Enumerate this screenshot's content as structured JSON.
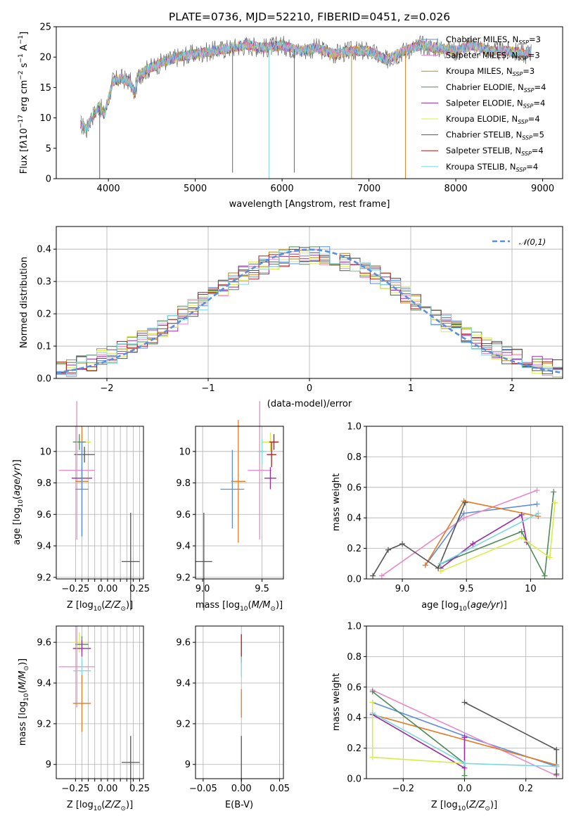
{
  "title": "PLATE=0736, MJD=52210, FIBERID=0451, z=0.026",
  "colors": {
    "Chabrier MILES": "#5b8ee0",
    "Salpeter MILES": "#e98ac6",
    "Kroupa MILES": "#b88a1d",
    "Chabrier ELODIE": "#4f8a57",
    "Salpeter ELODIE": "#9a2aa6",
    "Kroupa ELODIE": "#d8ec4a",
    "Chabrier STELIB": "#555555",
    "Salpeter STELIB": "#b01818",
    "Kroupa STELIB": "#7ad8e2",
    "orange": "#e67a22",
    "normal": "#5b8ee0",
    "grid": "#b0b0b0"
  },
  "chart_data": [
    {
      "id": "spectrum",
      "type": "line",
      "xlabel": "wavelength [Angstrom, rest frame]",
      "ylabel": "Flux [fλ10⁻¹⁷ erg cm⁻² s⁻¹ A⁻¹]",
      "xlim": [
        3400,
        9230
      ],
      "ylim": [
        0,
        25
      ],
      "xticks": [
        4000,
        5000,
        6000,
        7000,
        8000,
        9000
      ],
      "yticks": [
        0,
        5,
        10,
        15,
        20,
        25
      ],
      "grid": false,
      "legend": "top-right",
      "legend_entries": [
        {
          "model": "Chabrier MILES",
          "n": "3"
        },
        {
          "model": "Salpeter MILES",
          "n": "3"
        },
        {
          "model": "Kroupa MILES",
          "n": "3"
        },
        {
          "model": "Chabrier ELODIE",
          "n": "4"
        },
        {
          "model": "Salpeter ELODIE",
          "n": "4"
        },
        {
          "model": "Kroupa ELODIE",
          "n": "4"
        },
        {
          "model": "Chabrier STELIB",
          "n": "5"
        },
        {
          "model": "Salpeter STELIB",
          "n": "4"
        },
        {
          "model": "Kroupa STELIB",
          "n": "4"
        }
      ],
      "continuum": [
        [
          3680,
          9
        ],
        [
          3750,
          8
        ],
        [
          3800,
          10
        ],
        [
          3850,
          11
        ],
        [
          3900,
          12
        ],
        [
          3950,
          10.5
        ],
        [
          4000,
          13
        ],
        [
          4050,
          16
        ],
        [
          4150,
          16.5
        ],
        [
          4250,
          16
        ],
        [
          4300,
          14
        ],
        [
          4350,
          17
        ],
        [
          4450,
          18
        ],
        [
          4600,
          19
        ],
        [
          4800,
          20
        ],
        [
          5000,
          20.5
        ],
        [
          5200,
          21
        ],
        [
          5400,
          21.5
        ],
        [
          5600,
          22
        ],
        [
          5800,
          21.5
        ],
        [
          6000,
          22
        ],
        [
          6200,
          21
        ],
        [
          6400,
          21.5
        ],
        [
          6600,
          20.5
        ],
        [
          6800,
          21
        ],
        [
          7000,
          21
        ],
        [
          7200,
          19.5
        ],
        [
          7400,
          21
        ],
        [
          7600,
          22
        ],
        [
          7800,
          21.5
        ],
        [
          8000,
          21
        ],
        [
          8200,
          22
        ],
        [
          8400,
          21
        ],
        [
          8600,
          21
        ],
        [
          8800,
          20.5
        ],
        [
          8870,
          21
        ]
      ],
      "dropouts": [
        {
          "x": 3900,
          "y": 0,
          "series": "Chabrier STELIB"
        },
        {
          "x": 5430,
          "y": 1,
          "series": "Chabrier STELIB"
        },
        {
          "x": 5850,
          "y": 0,
          "series": "Kroupa STELIB"
        },
        {
          "x": 6140,
          "y": 1,
          "series": "Chabrier STELIB"
        },
        {
          "x": 6800,
          "y": 0,
          "series": "Kroupa MILES"
        },
        {
          "x": 7420,
          "y": 0,
          "series": "orange"
        }
      ]
    },
    {
      "id": "residuals",
      "type": "step",
      "xlabel": "(data-model)/error",
      "ylabel": "Normed distribution",
      "xlim": [
        -2.5,
        2.5
      ],
      "ylim": [
        0,
        0.47
      ],
      "xticks": [
        -2,
        -1,
        0,
        1,
        2
      ],
      "yticks": [
        0.0,
        0.1,
        0.2,
        0.3,
        0.4
      ],
      "grid": true,
      "legend": "top-right",
      "legend_label": "𝒩(0,1)",
      "bin_width": 0.1
    },
    {
      "id": "age-Z",
      "type": "scatter",
      "xlabel": "Z [log₁₀(Z/Z⊙)]",
      "ylabel": "age  [log₁₀(age/yr)]",
      "xlim": [
        -0.4,
        0.28
      ],
      "ylim": [
        9.19,
        10.16
      ],
      "xticks": [
        -0.25,
        -0.2,
        -0.15,
        -0.1,
        -0.05,
        0.0,
        0.05,
        0.1,
        0.15,
        0.2,
        0.25
      ],
      "xticklabels": [
        "−0.25",
        "",
        "",
        "",
        "",
        "0.00",
        "",
        "",
        "",
        "",
        "0.25"
      ],
      "yticks": [
        9.2,
        9.4,
        9.6,
        9.8,
        10.0
      ],
      "grid": true,
      "points": [
        {
          "x": -0.2,
          "y": 10.06,
          "xerr": 0.07,
          "yerr": 0.05,
          "series": "Kroupa ELODIE"
        },
        {
          "x": -0.22,
          "y": 10.06,
          "xerr": 0.05,
          "yerr": 0.05,
          "series": "Chabrier ELODIE"
        },
        {
          "x": -0.18,
          "y": 9.98,
          "xerr": 0.08,
          "yerr": 0.05,
          "series": "Chabrier STELIB"
        },
        {
          "x": -0.24,
          "y": 9.88,
          "xerr": 0.14,
          "yerr": 0.44,
          "series": "Salpeter MILES"
        },
        {
          "x": -0.2,
          "y": 9.83,
          "xerr": 0.08,
          "yerr": 0.07,
          "series": "Salpeter ELODIE"
        },
        {
          "x": -0.2,
          "y": 9.81,
          "xerr": 0.05,
          "yerr": 0.35,
          "series": "orange"
        },
        {
          "x": -0.2,
          "y": 9.76,
          "xerr": 0.05,
          "yerr": 0.3,
          "series": "Chabrier MILES"
        },
        {
          "x": 0.18,
          "y": 9.3,
          "xerr": 0.07,
          "yerr": 0.31,
          "series": "Chabrier STELIB"
        }
      ]
    },
    {
      "id": "age-mass",
      "type": "scatter",
      "xlabel": "mass [log₁₀(M/M⊙)]",
      "xlim": [
        8.94,
        9.68
      ],
      "ylim": [
        9.19,
        10.16
      ],
      "xticks": [
        9.0,
        9.5
      ],
      "yticks": [
        9.2,
        9.4,
        9.6,
        9.8,
        10.0
      ],
      "grid": true,
      "points": [
        {
          "x": 9.57,
          "y": 10.06,
          "xerr": 0.07,
          "yerr": 0.06,
          "series": "Kroupa ELODIE"
        },
        {
          "x": 9.6,
          "y": 10.06,
          "xerr": 0.04,
          "yerr": 0.05,
          "series": "Salpeter STELIB"
        },
        {
          "x": 9.5,
          "y": 10.0,
          "xerr": 0.04,
          "yerr": 0.08,
          "series": "Kroupa STELIB"
        },
        {
          "x": 9.58,
          "y": 9.98,
          "xerr": 0.04,
          "yerr": 0.08,
          "series": "Salpeter STELIB"
        },
        {
          "x": 9.48,
          "y": 9.88,
          "xerr": 0.1,
          "yerr": 0.44,
          "series": "Salpeter MILES"
        },
        {
          "x": 9.57,
          "y": 9.83,
          "xerr": 0.05,
          "yerr": 0.07,
          "series": "Salpeter ELODIE"
        },
        {
          "x": 9.3,
          "y": 9.81,
          "xerr": 0.06,
          "yerr": 0.39,
          "series": "orange"
        },
        {
          "x": 9.25,
          "y": 9.76,
          "xerr": 0.1,
          "yerr": 0.25,
          "series": "Chabrier MILES"
        },
        {
          "x": 9.01,
          "y": 9.3,
          "xerr": 0.07,
          "yerr": 0.31,
          "series": "Chabrier STELIB"
        }
      ]
    },
    {
      "id": "weight-age",
      "type": "line",
      "xlabel": "age  [log₁₀(age/yr)]",
      "ylabel": "mass weight",
      "xlim": [
        8.72,
        10.25
      ],
      "ylim": [
        0,
        1
      ],
      "xticks": [
        9.0,
        9.5,
        10.0
      ],
      "yticks": [
        0.0,
        0.2,
        0.4,
        0.6,
        0.8,
        1.0
      ],
      "grid": true,
      "series": [
        {
          "model": "Chabrier MILES",
          "x": [
            9.18,
            9.48,
            10.05
          ],
          "y": [
            0.09,
            0.43,
            0.49
          ]
        },
        {
          "model": "Salpeter MILES",
          "x": [
            8.84,
            9.48,
            10.05
          ],
          "y": [
            0.02,
            0.4,
            0.58
          ]
        },
        {
          "model": "orange",
          "x": [
            9.18,
            9.48,
            10.06
          ],
          "y": [
            0.09,
            0.51,
            0.41
          ]
        },
        {
          "model": "Chabrier ELODIE",
          "x": [
            9.3,
            9.93,
            10.11,
            10.18
          ],
          "y": [
            0.1,
            0.31,
            0.02,
            0.57
          ]
        },
        {
          "model": "Salpeter ELODIE",
          "x": [
            9.3,
            9.55,
            9.93,
            9.97
          ],
          "y": [
            0.07,
            0.23,
            0.42,
            0.24
          ]
        },
        {
          "model": "Kroupa ELODIE",
          "x": [
            9.3,
            9.93,
            10.15,
            10.19
          ],
          "y": [
            0.05,
            0.27,
            0.14,
            0.5
          ]
        },
        {
          "model": "Chabrier STELIB",
          "x": [
            8.77,
            8.89,
            9.0,
            9.28,
            9.49
          ],
          "y": [
            0.02,
            0.19,
            0.23,
            0.07,
            0.5
          ]
        },
        {
          "model": "Kroupa STELIB",
          "x": [
            9.3,
            10.06
          ],
          "y": [
            0.1,
            0.43
          ]
        }
      ]
    },
    {
      "id": "mass-Z",
      "type": "scatter",
      "xlabel": "Z [log₁₀(Z/Z⊙)]",
      "ylabel": "mass [log₁₀(M/M⊙)]",
      "xlim": [
        -0.4,
        0.28
      ],
      "ylim": [
        8.93,
        9.68
      ],
      "xticks": [
        -0.25,
        -0.2,
        -0.15,
        -0.1,
        -0.05,
        0.0,
        0.05,
        0.1,
        0.15,
        0.2,
        0.25
      ],
      "xticklabels": [
        "−0.25",
        "",
        "",
        "",
        "",
        "0.00",
        "",
        "",
        "",
        "",
        "0.25"
      ],
      "yticks": [
        9.0,
        9.2,
        9.4,
        9.6
      ],
      "grid": true,
      "points": [
        {
          "x": -0.22,
          "y": 9.6,
          "xerr": 0.06,
          "yerr": 0.05,
          "series": "Kroupa ELODIE"
        },
        {
          "x": -0.2,
          "y": 9.59,
          "xerr": 0.05,
          "yerr": 0.04,
          "series": "Chabrier ELODIE"
        },
        {
          "x": -0.2,
          "y": 9.57,
          "xerr": 0.07,
          "yerr": 0.04,
          "series": "Salpeter ELODIE"
        },
        {
          "x": -0.24,
          "y": 9.48,
          "xerr": 0.14,
          "yerr": 0.2,
          "series": "Salpeter MILES"
        },
        {
          "x": -0.2,
          "y": 9.46,
          "xerr": 0.07,
          "yerr": 0.06,
          "series": "Kroupa STELIB"
        },
        {
          "x": -0.2,
          "y": 9.3,
          "xerr": 0.07,
          "yerr": 0.14,
          "series": "orange"
        },
        {
          "x": 0.18,
          "y": 9.01,
          "xerr": 0.07,
          "yerr": 0.13,
          "series": "Chabrier STELIB"
        }
      ]
    },
    {
      "id": "mass-ebv",
      "type": "scatter",
      "xlabel": "E(B-V)",
      "xlim": [
        -0.06,
        0.055
      ],
      "ylim": [
        8.93,
        9.68
      ],
      "xticks": [
        -0.05,
        0.0,
        0.05
      ],
      "xticklabels": [
        "−0.05",
        "0.00",
        "0.05"
      ],
      "yticks": [
        9.0,
        9.2,
        9.4,
        9.6
      ],
      "grid": true,
      "points": [
        {
          "x": 0,
          "y": 9.57,
          "yerr": 0.07,
          "series": "Salpeter STELIB"
        },
        {
          "x": 0,
          "y": 9.48,
          "yerr": 0.05,
          "series": "Kroupa STELIB"
        },
        {
          "x": 0,
          "y": 9.3,
          "yerr": 0.07,
          "series": "orange"
        },
        {
          "x": 0,
          "y": 9.02,
          "yerr": 0.12,
          "series": "Chabrier STELIB"
        }
      ]
    },
    {
      "id": "weight-Z",
      "type": "line",
      "xlabel": "Z [log₁₀(Z/Z⊙)]",
      "ylabel": "mass weight",
      "xlim": [
        -0.32,
        0.32
      ],
      "ylim": [
        0,
        1
      ],
      "xticks": [
        -0.2,
        0.0,
        0.2
      ],
      "xticklabels": [
        "−0.2",
        "0.0",
        "0.2"
      ],
      "yticks": [
        0.0,
        0.2,
        0.4,
        0.6,
        0.8,
        1.0
      ],
      "grid": true,
      "series": [
        {
          "model": "Chabrier MILES",
          "x": [
            -0.3,
            0.0,
            0.3
          ],
          "y": [
            0.5,
            0.28,
            0.08
          ]
        },
        {
          "model": "Salpeter MILES",
          "x": [
            -0.3,
            0.3
          ],
          "y": [
            0.58,
            0.02
          ]
        },
        {
          "model": "orange",
          "x": [
            -0.3,
            0.3
          ],
          "y": [
            0.42,
            0.09
          ]
        },
        {
          "model": "Chabrier ELODIE",
          "x": [
            -0.3,
            0.0,
            0.0
          ],
          "y": [
            0.57,
            0.1,
            0.02
          ]
        },
        {
          "model": "Salpeter ELODIE",
          "x": [
            -0.3,
            0.0,
            0.0
          ],
          "y": [
            0.42,
            0.07,
            0.27
          ]
        },
        {
          "model": "Kroupa ELODIE",
          "x": [
            -0.3,
            -0.3,
            0.0
          ],
          "y": [
            0.5,
            0.14,
            0.1
          ]
        },
        {
          "model": "Chabrier STELIB",
          "x": [
            0.0,
            0.3,
            0.3
          ],
          "y": [
            0.5,
            0.19,
            0.03
          ]
        },
        {
          "model": "Kroupa STELIB",
          "x": [
            -0.3,
            0.0,
            0.3
          ],
          "y": [
            0.43,
            0.1,
            0.08
          ]
        }
      ]
    }
  ]
}
